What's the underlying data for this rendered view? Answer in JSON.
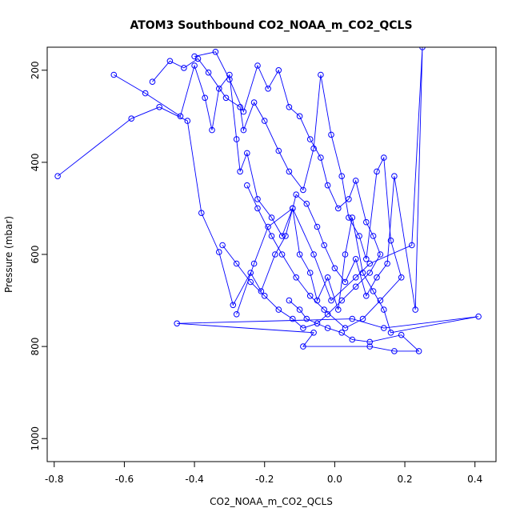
{
  "chart_data": {
    "type": "line",
    "title": "ATOM3 Southbound CO2_NOAA_m_CO2_QCLS",
    "xlabel": "CO2_NOAA_m_CO2_QCLS",
    "ylabel": "Pressure (mbar)",
    "xlim": [
      -0.82,
      0.46
    ],
    "ylim": [
      1050,
      150
    ],
    "y_reversed": true,
    "x_ticks": [
      -0.8,
      -0.6,
      -0.4,
      -0.2,
      0.0,
      0.2,
      0.4
    ],
    "x_tick_labels": [
      "-0.8",
      "-0.6",
      "-0.4",
      "-0.2",
      "0.0",
      "0.2",
      "0.4"
    ],
    "y_ticks": [
      200,
      400,
      600,
      800,
      1000
    ],
    "y_tick_labels": [
      "200",
      "400",
      "600",
      "800",
      "1000"
    ],
    "grid": false,
    "series_color": "#0000ff",
    "series": [
      {
        "x": [
          -0.63,
          -0.54,
          -0.44,
          -0.4,
          -0.37,
          -0.35,
          -0.33,
          -0.3,
          -0.28,
          -0.27,
          -0.25,
          -0.22,
          -0.18,
          -0.15,
          -0.12,
          -0.1,
          -0.07,
          -0.05,
          -0.02,
          0.01,
          0.03,
          0.05,
          0.08,
          0.11,
          0.14,
          0.16,
          0.41,
          0.14,
          0.05,
          -0.45,
          -0.06,
          -0.09,
          0.1,
          0.17,
          0.24,
          0.19,
          0.1,
          0.05,
          0.02,
          -0.02,
          -0.08,
          -0.1,
          -0.13
        ],
        "y": [
          210,
          250,
          300,
          190,
          260,
          330,
          240,
          210,
          350,
          420,
          380,
          480,
          520,
          560,
          500,
          600,
          640,
          700,
          650,
          720,
          600,
          520,
          640,
          680,
          720,
          770,
          735,
          760,
          740,
          750,
          770,
          800,
          800,
          810,
          810,
          775,
          790,
          785,
          770,
          760,
          740,
          720,
          700
        ]
      },
      {
        "x": [
          -0.79,
          -0.58,
          -0.5,
          -0.42,
          -0.38,
          -0.33,
          -0.29,
          -0.24,
          -0.21,
          -0.17,
          -0.14,
          -0.11,
          -0.08,
          -0.05,
          -0.03,
          0.0,
          0.03,
          0.06,
          0.09,
          0.12,
          0.15,
          0.17,
          0.23,
          0.25,
          0.22,
          0.1,
          0.06,
          -0.01,
          -0.06,
          -0.12,
          -0.19,
          -0.23,
          -0.28
        ],
        "y": [
          430,
          305,
          280,
          310,
          510,
          595,
          710,
          640,
          680,
          600,
          560,
          470,
          490,
          540,
          580,
          630,
          660,
          610,
          690,
          650,
          620,
          430,
          720,
          150,
          580,
          620,
          650,
          700,
          600,
          500,
          540,
          620,
          730
        ]
      },
      {
        "x": [
          -0.52,
          -0.47,
          -0.43,
          -0.39,
          -0.36,
          -0.31,
          -0.27,
          -0.26,
          -0.23,
          -0.2,
          -0.16,
          -0.13,
          -0.09,
          -0.06,
          -0.04,
          -0.01,
          0.02,
          0.04,
          0.07,
          0.09,
          0.12,
          0.14,
          0.16,
          0.19,
          0.13,
          0.08,
          0.03,
          -0.03,
          -0.07,
          -0.11,
          -0.15,
          -0.18,
          -0.22,
          -0.25
        ],
        "y": [
          225,
          180,
          195,
          175,
          205,
          260,
          280,
          330,
          270,
          310,
          375,
          420,
          460,
          370,
          210,
          340,
          430,
          520,
          560,
          610,
          420,
          390,
          570,
          650,
          700,
          740,
          760,
          720,
          690,
          650,
          600,
          560,
          500,
          450
        ]
      },
      {
        "x": [
          -0.4,
          -0.34,
          -0.3,
          -0.26,
          -0.22,
          -0.19,
          -0.16,
          -0.13,
          -0.1,
          -0.07,
          -0.04,
          -0.02,
          0.01,
          0.04,
          0.06,
          0.09,
          0.11,
          0.13,
          0.1,
          0.06,
          0.02,
          -0.02,
          -0.05,
          -0.09,
          -0.12,
          -0.16,
          -0.2,
          -0.24,
          -0.28,
          -0.32
        ],
        "y": [
          170,
          160,
          220,
          290,
          190,
          240,
          200,
          280,
          300,
          350,
          390,
          450,
          500,
          480,
          440,
          530,
          560,
          600,
          640,
          670,
          700,
          730,
          750,
          760,
          740,
          720,
          690,
          660,
          620,
          580
        ]
      }
    ]
  }
}
